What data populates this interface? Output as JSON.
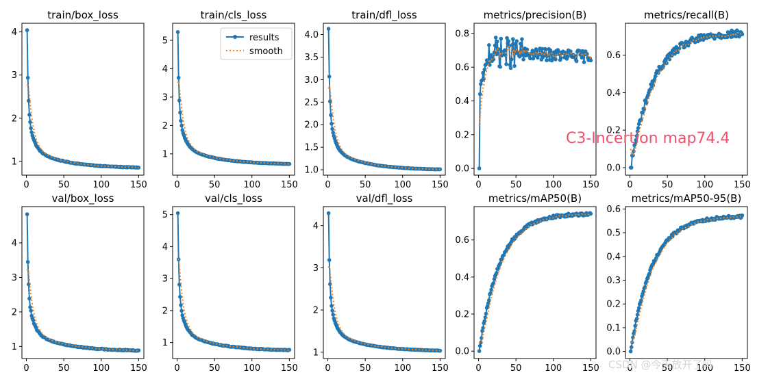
{
  "chart_data": [
    {
      "id": "p0",
      "type": "line",
      "title": "train/box_loss",
      "xlim": [
        -6,
        157
      ],
      "ylim": [
        0.68,
        4.2
      ],
      "xticks": [
        0,
        50,
        100,
        150
      ],
      "yticks": [
        1,
        2,
        3,
        4
      ],
      "start": 4.03,
      "end": 0.84,
      "smooth_start": 2.75,
      "shape": "loss",
      "k": 0.1,
      "noise": 0.015,
      "legend": false
    },
    {
      "id": "p1",
      "type": "line",
      "title": "train/cls_loss",
      "xlim": [
        -6,
        157
      ],
      "ylim": [
        0.25,
        5.6
      ],
      "xticks": [
        0,
        50,
        100,
        150
      ],
      "yticks": [
        1,
        2,
        3,
        4,
        5
      ],
      "start": 5.28,
      "end": 0.62,
      "smooth_start": 3.5,
      "shape": "loss",
      "k": 0.1,
      "noise": 0.015,
      "legend": true,
      "legend_entries": [
        {
          "name": "results",
          "style": "line-marker"
        },
        {
          "name": "smooth",
          "style": "dotted"
        }
      ]
    },
    {
      "id": "p2",
      "type": "line",
      "title": "train/dfl_loss",
      "xlim": [
        -6,
        157
      ],
      "ylim": [
        0.88,
        4.25
      ],
      "xticks": [
        0,
        50,
        100,
        150
      ],
      "yticks": [
        1.0,
        1.5,
        2.0,
        2.5,
        3.0,
        3.5,
        4.0
      ],
      "yfmt": 1,
      "start": 4.12,
      "end": 0.99,
      "smooth_start": 2.8,
      "shape": "loss",
      "k": 0.1,
      "noise": 0.008,
      "legend": false
    },
    {
      "id": "p3",
      "type": "line",
      "title": "metrics/precision(B)",
      "xlim": [
        -6,
        157
      ],
      "ylim": [
        -0.04,
        0.86
      ],
      "xticks": [
        0,
        50,
        100,
        150
      ],
      "yticks": [
        0.0,
        0.2,
        0.4,
        0.6,
        0.8
      ],
      "yfmt": 1,
      "start": 0.0,
      "end": 0.67,
      "plateau": 0.69,
      "smooth_start": 0.25,
      "shape": "precision",
      "noise": 0.05,
      "legend": false
    },
    {
      "id": "p4",
      "type": "line",
      "title": "metrics/recall(B)",
      "xlim": [
        -6,
        157
      ],
      "ylim": [
        -0.04,
        0.77
      ],
      "xticks": [
        0,
        50,
        100,
        150
      ],
      "yticks": [
        0.0,
        0.2,
        0.4,
        0.6
      ],
      "yfmt": 1,
      "start": 0.0,
      "end": 0.72,
      "smooth_start": 0.1,
      "shape": "recall",
      "k": 0.028,
      "noise": 0.02,
      "legend": false
    },
    {
      "id": "p5",
      "type": "line",
      "title": "val/box_loss",
      "xlim": [
        -6,
        157
      ],
      "ylim": [
        0.65,
        5.05
      ],
      "xticks": [
        0,
        50,
        100,
        150
      ],
      "yticks": [
        1,
        2,
        3,
        4
      ],
      "start": 4.8,
      "end": 0.86,
      "smooth_start": 3.2,
      "shape": "loss",
      "k": 0.11,
      "noise": 0.025,
      "legend": false
    },
    {
      "id": "p6",
      "type": "line",
      "title": "val/cls_loss",
      "xlim": [
        -6,
        157
      ],
      "ylim": [
        0.5,
        5.25
      ],
      "xticks": [
        0,
        50,
        100,
        150
      ],
      "yticks": [
        1,
        2,
        3,
        4,
        5
      ],
      "start": 5.02,
      "end": 0.74,
      "smooth_start": 3.6,
      "shape": "loss",
      "k": 0.09,
      "noise": 0.02,
      "legend": false
    },
    {
      "id": "p7",
      "type": "line",
      "title": "val/dfl_loss",
      "xlim": [
        -6,
        157
      ],
      "ylim": [
        0.85,
        4.45
      ],
      "xticks": [
        0,
        50,
        100,
        150
      ],
      "yticks": [
        1,
        2,
        3,
        4
      ],
      "start": 4.28,
      "end": 1.02,
      "smooth_start": 3.0,
      "shape": "loss",
      "k": 0.11,
      "noise": 0.01,
      "legend": false
    },
    {
      "id": "p8",
      "type": "line",
      "title": "metrics/mAP50(B)",
      "xlim": [
        -6,
        157
      ],
      "ylim": [
        -0.04,
        0.78
      ],
      "xticks": [
        0,
        50,
        100,
        150
      ],
      "yticks": [
        0.0,
        0.2,
        0.4,
        0.6
      ],
      "yfmt": 1,
      "start": 0.0,
      "end": 0.744,
      "smooth_start": 0.05,
      "shape": "map",
      "k": 0.035,
      "noise": 0.008,
      "legend": false
    },
    {
      "id": "p9",
      "type": "line",
      "title": "metrics/mAP50-95(B)",
      "xlim": [
        -6,
        157
      ],
      "ylim": [
        -0.03,
        0.61
      ],
      "xticks": [
        0,
        50,
        100,
        150
      ],
      "yticks": [
        0.0,
        0.1,
        0.2,
        0.3,
        0.4,
        0.5,
        0.6
      ],
      "yfmt": 1,
      "start": 0.0,
      "end": 0.572,
      "smooth_start": 0.04,
      "shape": "map",
      "k": 0.033,
      "noise": 0.006,
      "legend": false
    }
  ],
  "epochs": 150,
  "annotation": "C3-Incertion map74.4",
  "watermark": "CSDN @今天放开了吗",
  "colors": {
    "results": "#1f77b4",
    "smooth": "#ff7f0e",
    "annotation": "#f0506e",
    "axis": "#000000"
  }
}
